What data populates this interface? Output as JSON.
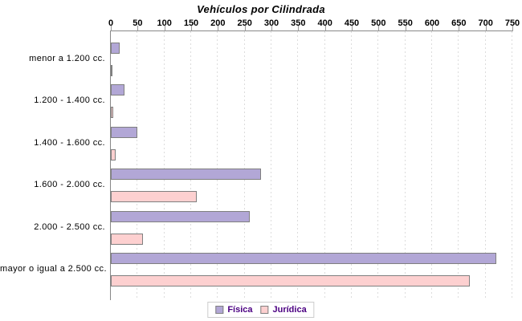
{
  "title": "Vehículos por Cilindrada",
  "colors": {
    "background": "#ffffff",
    "axis": "#888888",
    "gridline": "#dcdcdc",
    "bar_border": "#7f7f7f",
    "tick_text": "#000000",
    "category_text": "#000000",
    "legend_text": "#4b0082",
    "legend_border": "#cccccc",
    "fisica_fill": "#b2a7d6",
    "juridica_fill": "#fdd0d0"
  },
  "chart_data": {
    "type": "bar",
    "orientation": "horizontal",
    "title": "Vehículos por Cilindrada",
    "categories": [
      "menor a 1.200 cc.",
      "1.200 - 1.400 cc.",
      "1.400 - 1.600 cc.",
      "1.600 - 2.000 cc.",
      "2.000 - 2.500 cc.",
      "mayor o igual a 2.500 cc."
    ],
    "series": [
      {
        "name": "Física",
        "fill": "#b2a7d6",
        "values": [
          16,
          25,
          50,
          280,
          260,
          720
        ]
      },
      {
        "name": "Jurídica",
        "fill": "#fdd0d0",
        "values": [
          3,
          4,
          9,
          160,
          60,
          670
        ]
      }
    ],
    "xlabel": "",
    "ylabel": "",
    "xlim": [
      0,
      750
    ],
    "xticks": [
      0,
      50,
      100,
      150,
      200,
      250,
      300,
      350,
      400,
      450,
      500,
      550,
      600,
      650,
      700,
      750
    ],
    "grid": true,
    "legend_position": "bottom"
  }
}
